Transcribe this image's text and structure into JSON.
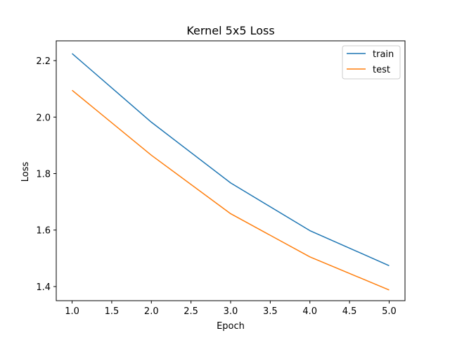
{
  "chart_data": {
    "type": "line",
    "title": "Kernel 5x5 Loss",
    "xlabel": "Epoch",
    "ylabel": "Loss",
    "x": [
      1.0,
      2.0,
      3.0,
      4.0,
      5.0
    ],
    "xlim": [
      0.8,
      5.2
    ],
    "ylim": [
      1.35,
      2.27
    ],
    "xticks": [
      1.0,
      1.5,
      2.0,
      2.5,
      3.0,
      3.5,
      4.0,
      4.5,
      5.0
    ],
    "xtick_labels": [
      "1.0",
      "1.5",
      "2.0",
      "2.5",
      "3.0",
      "3.5",
      "4.0",
      "4.5",
      "5.0"
    ],
    "yticks": [
      1.4,
      1.6,
      1.8,
      2.0,
      2.2
    ],
    "ytick_labels": [
      "1.4",
      "1.6",
      "1.8",
      "2.0",
      "2.2"
    ],
    "grid": false,
    "legend_position": "top-right",
    "series": [
      {
        "name": "train",
        "color": "#1f77b4",
        "values": [
          2.225,
          1.982,
          1.767,
          1.598,
          1.474
        ]
      },
      {
        "name": "test",
        "color": "#ff7f0e",
        "values": [
          2.095,
          1.865,
          1.658,
          1.505,
          1.388
        ]
      }
    ]
  }
}
